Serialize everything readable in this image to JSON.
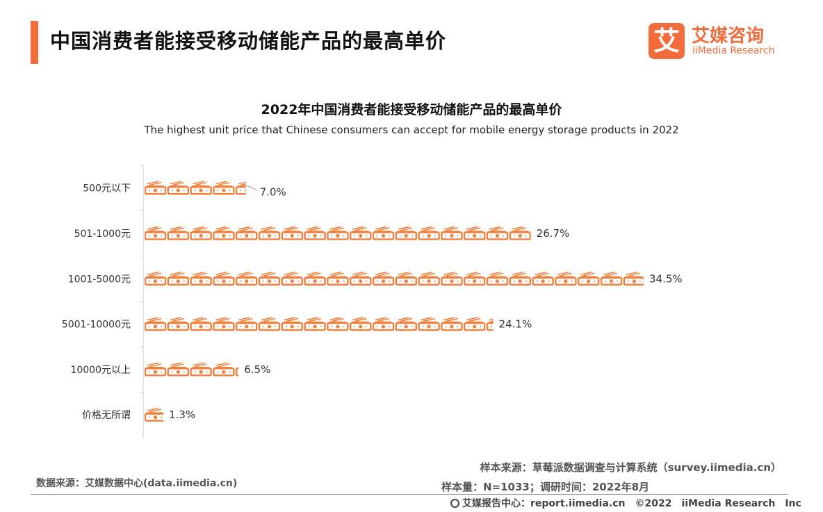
{
  "header": {
    "title": "中国消费者能接受移动储能产品的最高单价",
    "logo_mark": "艾",
    "logo_cn": "艾媒咨询",
    "logo_en": "iiMedia Research"
  },
  "chart_data": {
    "type": "bar",
    "orientation": "horizontal",
    "title": "2022年中国消费者能接受移动储能产品的最高单价",
    "subtitle": "The highest unit price that Chinese consumers can accept for mobile energy storage products in 2022",
    "categories": [
      "500元以下",
      "501-1000元",
      "1001-5000元",
      "5001-10000元",
      "10000元以上",
      "价格无所谓"
    ],
    "values": [
      7.0,
      26.7,
      34.5,
      24.1,
      6.5,
      1.3
    ],
    "value_labels": [
      "7.0%",
      "26.7%",
      "34.5%",
      "24.1%",
      "6.5%",
      "1.3%"
    ],
    "unit": "%",
    "xlim": [
      0,
      34.5
    ],
    "bar_style": "pictogram-money",
    "color": "#F0803C",
    "grid": false,
    "legend": "none"
  },
  "footer": {
    "data_source": "数据来源：艾媒数据中心(data.iimedia.cn)",
    "sample_source": "样本来源：草莓派数据调查与计算系统（survey.iimedia.cn）",
    "sample_size": "样本量：N=1033；调研时间：2022年8月",
    "report_center": "艾媒报告中心：report.iimedia.cn　©2022　iiMedia Research　Inc"
  }
}
